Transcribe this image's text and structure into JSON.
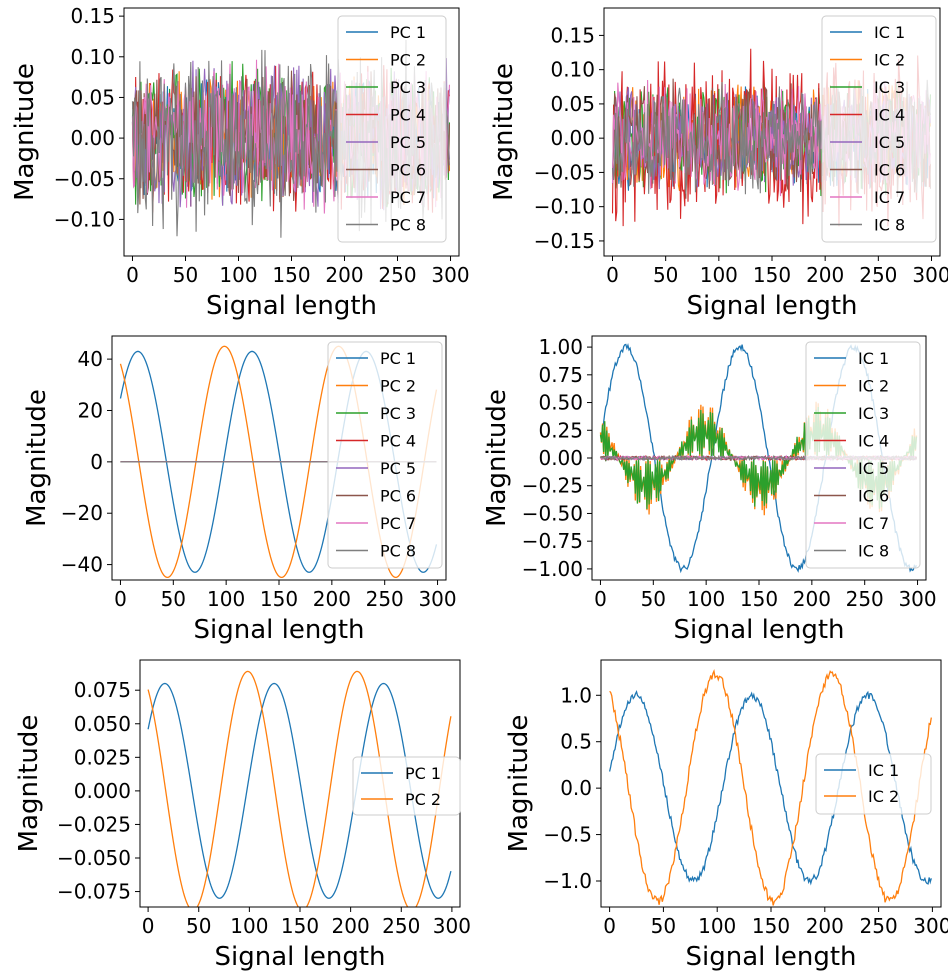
{
  "palette": [
    "#1f77b4",
    "#ff7f0e",
    "#2ca02c",
    "#d62728",
    "#9467bd",
    "#8c564b",
    "#e377c2",
    "#7f7f7f"
  ],
  "chart_data": [
    {
      "id": "pca-noisy",
      "type": "line",
      "xlabel": "Signal length",
      "ylabel": "Magnitude",
      "xlim": [
        -8,
        308
      ],
      "ylim": [
        -0.145,
        0.16
      ],
      "xticks": [
        0,
        50,
        100,
        150,
        200,
        250,
        300
      ],
      "yticks": [
        -0.1,
        -0.05,
        0.0,
        0.05,
        0.1,
        0.15
      ],
      "ytick_labels": [
        "−0.10",
        "−0.05",
        "0.00",
        "0.05",
        "0.10",
        "0.15"
      ],
      "legend": "upper right",
      "signal_kind": "noise",
      "n_points": 300,
      "series": [
        {
          "name": "PC 1",
          "amplitude": 0.08
        },
        {
          "name": "PC 2",
          "amplitude": 0.085
        },
        {
          "name": "PC 3",
          "amplitude": 0.1
        },
        {
          "name": "PC 4",
          "amplitude": 0.1
        },
        {
          "name": "PC 5",
          "amplitude": 0.1
        },
        {
          "name": "PC 6",
          "amplitude": 0.1
        },
        {
          "name": "PC 7",
          "amplitude": 0.1
        },
        {
          "name": "PC 8",
          "amplitude": 0.13
        }
      ]
    },
    {
      "id": "ica-noisy",
      "type": "line",
      "xlabel": "Signal length",
      "ylabel": "Magnitude",
      "xlim": [
        -8,
        308
      ],
      "ylim": [
        -0.172,
        0.19
      ],
      "xticks": [
        0,
        50,
        100,
        150,
        200,
        250,
        300
      ],
      "yticks": [
        -0.15,
        -0.1,
        -0.05,
        0.0,
        0.05,
        0.1,
        0.15
      ],
      "ytick_labels": [
        "−0.15",
        "−0.10",
        "−0.05",
        "0.00",
        "0.05",
        "0.10",
        "0.15"
      ],
      "legend": "upper right",
      "signal_kind": "noise",
      "n_points": 300,
      "series": [
        {
          "name": "IC 1",
          "amplitude": 0.08
        },
        {
          "name": "IC 2",
          "amplitude": 0.09
        },
        {
          "name": "IC 3",
          "amplitude": 0.09
        },
        {
          "name": "IC 4",
          "amplitude": 0.14
        },
        {
          "name": "IC 5",
          "amplitude": 0.08
        },
        {
          "name": "IC 6",
          "amplitude": 0.09
        },
        {
          "name": "IC 7",
          "amplitude": 0.09
        },
        {
          "name": "IC 8",
          "amplitude": 0.09
        }
      ]
    },
    {
      "id": "pca-clean",
      "type": "line",
      "xlabel": "Signal length",
      "ylabel": "Magnitude",
      "xlim": [
        -8,
        308
      ],
      "ylim": [
        -46,
        49
      ],
      "xticks": [
        0,
        50,
        100,
        150,
        200,
        250,
        300
      ],
      "yticks": [
        -40,
        -20,
        0,
        20,
        40
      ],
      "ytick_labels": [
        "−40",
        "−20",
        "0",
        "20",
        "40"
      ],
      "legend": "upper right",
      "signal_kind": "sine",
      "n_points": 300,
      "series": [
        {
          "name": "PC 1",
          "amplitude": 43,
          "phase_deg": 35
        },
        {
          "name": "PC 2",
          "amplitude": 45,
          "phase_deg": 122
        },
        {
          "name": "PC 3",
          "amplitude": 0,
          "phase_deg": 0
        },
        {
          "name": "PC 4",
          "amplitude": 0,
          "phase_deg": 0
        },
        {
          "name": "PC 5",
          "amplitude": 0,
          "phase_deg": 0
        },
        {
          "name": "PC 6",
          "amplitude": 0,
          "phase_deg": 0
        },
        {
          "name": "PC 7",
          "amplitude": 0,
          "phase_deg": 0
        },
        {
          "name": "PC 8",
          "amplitude": 0,
          "phase_deg": 0
        }
      ]
    },
    {
      "id": "ica-clean",
      "type": "line",
      "xlabel": "Signal length",
      "ylabel": "Magnitude",
      "xlim": [
        -8,
        308
      ],
      "ylim": [
        -1.1,
        1.1
      ],
      "xticks": [
        0,
        50,
        100,
        150,
        200,
        250,
        300
      ],
      "yticks": [
        -1.0,
        -0.75,
        -0.5,
        -0.25,
        0.0,
        0.25,
        0.5,
        0.75,
        1.0
      ],
      "ytick_labels": [
        "−1.00",
        "−0.75",
        "−0.50",
        "−0.25",
        "0.00",
        "0.25",
        "0.50",
        "0.75",
        "1.00"
      ],
      "legend": "upper right",
      "signal_kind": "mixed",
      "n_points": 300,
      "series": [
        {
          "name": "IC 1",
          "amplitude": 1.0,
          "phase_deg": 10,
          "noise": 0.03
        },
        {
          "name": "IC 2",
          "amplitude": 0.5,
          "phase_deg": 122,
          "carrier": 1.1
        },
        {
          "name": "IC 3",
          "amplitude": 0.45,
          "phase_deg": 122,
          "carrier": 1.1
        },
        {
          "name": "IC 4",
          "amplitude": 0.0,
          "noise": 0.015
        },
        {
          "name": "IC 5",
          "amplitude": 0.0,
          "noise": 0.015
        },
        {
          "name": "IC 6",
          "amplitude": 0.0,
          "noise": 0.015
        },
        {
          "name": "IC 7",
          "amplitude": 0.0,
          "noise": 0.015
        },
        {
          "name": "IC 8",
          "amplitude": 0.0,
          "noise": 0.015
        }
      ]
    },
    {
      "id": "pca-two",
      "type": "line",
      "xlabel": "Signal length",
      "ylabel": "Magnitude",
      "xlim": [
        -8,
        308
      ],
      "ylim": [
        -0.0865,
        0.0975
      ],
      "xticks": [
        0,
        50,
        100,
        150,
        200,
        250,
        300
      ],
      "yticks": [
        -0.075,
        -0.05,
        -0.025,
        0.0,
        0.025,
        0.05,
        0.075
      ],
      "ytick_labels": [
        "−0.075",
        "−0.050",
        "−0.025",
        "0.000",
        "0.025",
        "0.050",
        "0.075"
      ],
      "legend": "center right",
      "signal_kind": "sine",
      "n_points": 300,
      "series": [
        {
          "name": "PC 1",
          "amplitude": 0.08,
          "phase_deg": 35
        },
        {
          "name": "PC 2",
          "amplitude": 0.089,
          "phase_deg": 122
        }
      ]
    },
    {
      "id": "ica-two",
      "type": "line",
      "xlabel": "Signal length",
      "ylabel": "Magnitude",
      "xlim": [
        -8,
        308
      ],
      "ylim": [
        -1.28,
        1.38
      ],
      "xticks": [
        0,
        50,
        100,
        150,
        200,
        250,
        300
      ],
      "yticks": [
        -1.0,
        -0.5,
        0.0,
        0.5,
        1.0
      ],
      "ytick_labels": [
        "−1.0",
        "−0.5",
        "0.0",
        "0.5",
        "1.0"
      ],
      "legend": "center right",
      "signal_kind": "sine",
      "n_points": 300,
      "series": [
        {
          "name": "IC 1",
          "amplitude": 1.0,
          "phase_deg": 10,
          "noise": 0.04
        },
        {
          "name": "IC 2",
          "amplitude": 1.22,
          "phase_deg": 122,
          "noise": 0.05
        }
      ]
    }
  ]
}
